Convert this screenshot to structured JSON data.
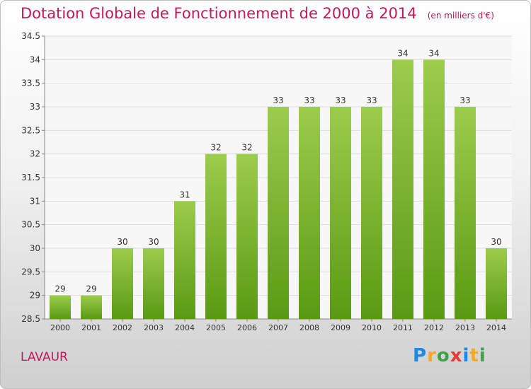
{
  "header": {
    "title": "Dotation Globale de Fonctionnement de 2000 à 2014",
    "subtitle": "(en milliers d'€)"
  },
  "footer": {
    "city": "LAVAUR",
    "logo": {
      "p1": "Pro",
      "x": "x",
      "p2": "iti"
    }
  },
  "chart_data": {
    "type": "bar",
    "categories": [
      "2000",
      "2001",
      "2002",
      "2003",
      "2004",
      "2005",
      "2006",
      "2007",
      "2008",
      "2009",
      "2010",
      "2011",
      "2012",
      "2013",
      "2014"
    ],
    "values": [
      29,
      29,
      30,
      30,
      31,
      32,
      32,
      33,
      33,
      33,
      33,
      34,
      34,
      33,
      30
    ],
    "data_labels": [
      "29",
      "29",
      "30",
      "30",
      "31",
      "32",
      "32",
      "33",
      "33",
      "33",
      "33",
      "34",
      "34",
      "33",
      "30"
    ],
    "ylim": [
      28.5,
      34.5
    ],
    "yticks": [
      28.5,
      29,
      29.5,
      30,
      30.5,
      31,
      31.5,
      32,
      32.5,
      33,
      33.5,
      34,
      34.5
    ],
    "ytick_labels": [
      "28.5",
      "29",
      "29.5",
      "30",
      "30.5",
      "31",
      "31.5",
      "32",
      "32.5",
      "33",
      "33.5",
      "34",
      "34.5"
    ],
    "grid": true,
    "colors": {
      "bar_top": "#9ccc4a",
      "bar_bottom": "#5a9a12",
      "text": "#333333"
    }
  }
}
